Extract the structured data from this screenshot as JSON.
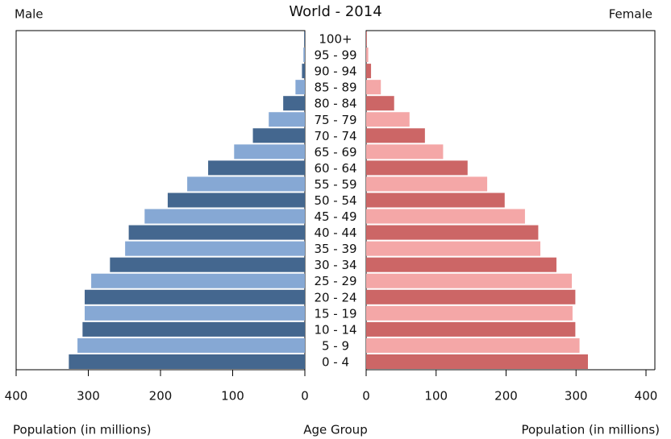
{
  "chart_data": {
    "type": "population-pyramid",
    "title": "World - 2014",
    "left_label": "Male",
    "right_label": "Female",
    "x_label": "Population (in millions)",
    "category_label": "Age Group",
    "categories": [
      "0 - 4",
      "5 - 9",
      "10 - 14",
      "15 - 19",
      "20 - 24",
      "25 - 29",
      "30 - 34",
      "35 - 39",
      "40 - 44",
      "45 - 49",
      "50 - 54",
      "55 - 59",
      "60 - 64",
      "65 - 69",
      "70 - 74",
      "75 - 79",
      "80 - 84",
      "85 - 89",
      "90 - 94",
      "95 - 99",
      "100+"
    ],
    "series": [
      {
        "name": "Male",
        "colors": [
          "#44678f",
          "#86a8d4"
        ],
        "values": [
          327,
          315,
          308,
          305,
          305,
          296,
          270,
          249,
          244,
          222,
          190,
          163,
          134,
          98,
          72,
          50,
          30,
          13,
          4,
          2,
          1
        ]
      },
      {
        "name": "Female",
        "colors": [
          "#cc6666",
          "#f4a7a7"
        ],
        "values": [
          317,
          305,
          299,
          295,
          299,
          294,
          272,
          249,
          246,
          227,
          198,
          173,
          145,
          110,
          84,
          62,
          40,
          21,
          7,
          3,
          1
        ]
      }
    ],
    "xlim": [
      0,
      400
    ],
    "xticks": [
      0,
      100,
      200,
      300,
      400
    ]
  }
}
